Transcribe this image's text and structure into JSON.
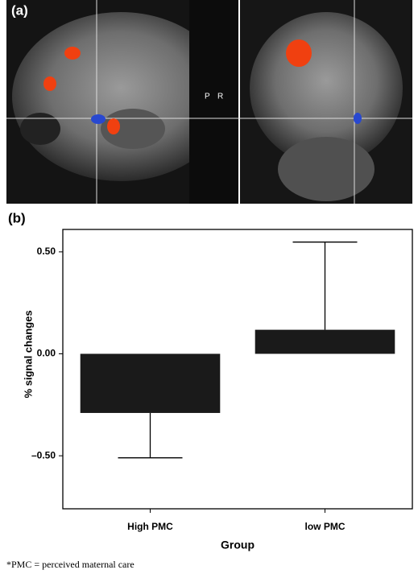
{
  "panel_a": {
    "label": "(a)",
    "marker_left": "P",
    "marker_right": "R"
  },
  "chart_data": {
    "type": "bar",
    "panel_label": "(b)",
    "x_label": "Group",
    "y_label": "% signal changes",
    "categories": [
      "High PMC",
      "low PMC"
    ],
    "values": [
      -0.29,
      0.118
    ],
    "errors": [
      0.22,
      0.43
    ],
    "color": "#1a1a1a",
    "ylim": [
      -0.76,
      0.61
    ],
    "yticks": [
      {
        "value": 0.5,
        "label": "0.50"
      },
      {
        "value": 0,
        "label": "0.00"
      },
      {
        "value": -0.5,
        "label": "–0.50"
      }
    ],
    "grid": false
  },
  "footnote": "*PMC = perceived maternal care"
}
